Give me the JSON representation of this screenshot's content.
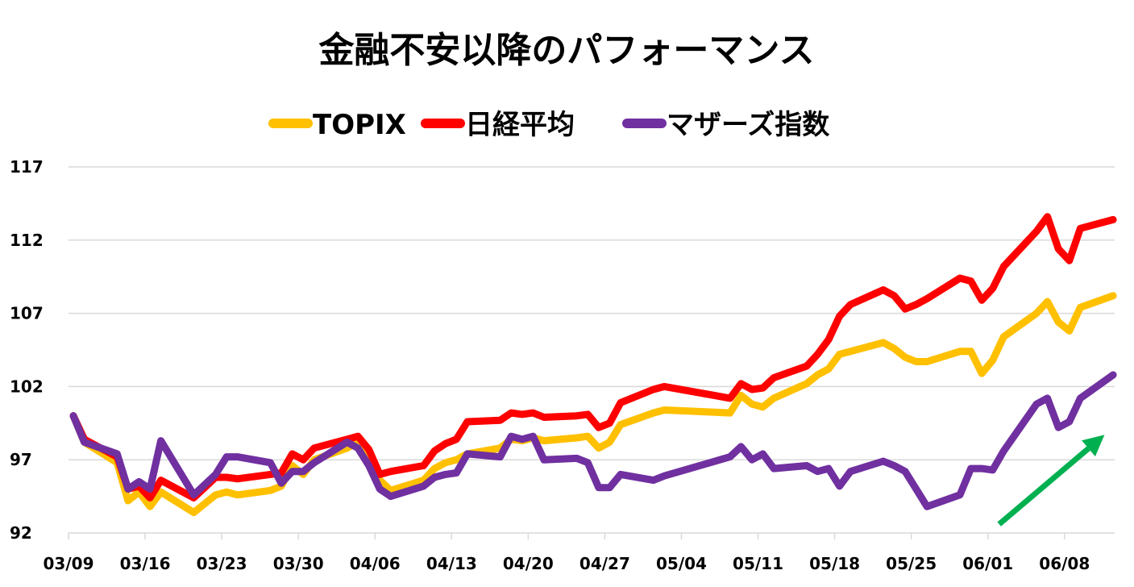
{
  "chart_data": {
    "type": "line",
    "title": "金融不安以降のパフォーマンス",
    "xlabel": "",
    "ylabel": "",
    "ylim": [
      92,
      117
    ],
    "yticks": [
      92,
      97,
      102,
      107,
      112,
      117
    ],
    "xticks": [
      "03/09",
      "03/16",
      "03/23",
      "03/30",
      "04/06",
      "04/13",
      "04/20",
      "04/27",
      "05/04",
      "05/11",
      "05/18",
      "05/25",
      "06/01",
      "06/08"
    ],
    "grid": true,
    "legend_position": "top",
    "x": [
      "03/09",
      "03/10",
      "03/13",
      "03/14",
      "03/15",
      "03/16",
      "03/17",
      "03/20",
      "03/22",
      "03/23",
      "03/24",
      "03/27",
      "03/28",
      "03/29",
      "03/30",
      "03/31",
      "04/03",
      "04/04",
      "04/05",
      "04/06",
      "04/07",
      "04/10",
      "04/11",
      "04/12",
      "04/13",
      "04/14",
      "04/17",
      "04/18",
      "04/19",
      "04/20",
      "04/21",
      "04/24",
      "04/25",
      "04/26",
      "04/27",
      "04/28",
      "05/01",
      "05/02",
      "05/08",
      "05/09",
      "05/10",
      "05/11",
      "05/12",
      "05/15",
      "05/16",
      "05/17",
      "05/18",
      "05/19",
      "05/22",
      "05/23",
      "05/24",
      "05/25",
      "05/26",
      "05/29",
      "05/30",
      "05/31",
      "06/01",
      "06/02",
      "06/05",
      "06/06",
      "06/07",
      "06/08",
      "06/09",
      "06/12"
    ],
    "series": [
      {
        "name": "TOPIX",
        "color": "#ffc000",
        "values": [
          100.0,
          98.2,
          96.8,
          94.2,
          94.8,
          93.8,
          94.8,
          93.4,
          94.6,
          94.8,
          94.6,
          94.9,
          95.2,
          96.6,
          96.0,
          97.0,
          97.8,
          98.2,
          97.4,
          95.6,
          94.9,
          95.6,
          96.4,
          96.8,
          97.0,
          97.4,
          97.8,
          98.4,
          98.3,
          98.5,
          98.3,
          98.5,
          98.6,
          97.8,
          98.2,
          99.4,
          100.2,
          100.4,
          100.2,
          101.4,
          100.8,
          100.6,
          101.2,
          102.2,
          102.8,
          103.2,
          104.2,
          104.4,
          105.0,
          104.6,
          104.0,
          103.7,
          103.7,
          104.4,
          104.4,
          102.9,
          103.8,
          105.4,
          107.0,
          107.8,
          106.4,
          105.8,
          107.4,
          108.2
        ]
      },
      {
        "name": "日経平均",
        "color": "#ff0000",
        "values": [
          100.0,
          98.4,
          97.2,
          95.0,
          95.2,
          94.4,
          95.6,
          94.4,
          95.8,
          95.8,
          95.7,
          96.0,
          96.1,
          97.4,
          97.0,
          97.8,
          98.4,
          98.6,
          97.7,
          96.0,
          96.2,
          96.6,
          97.6,
          98.1,
          98.4,
          99.6,
          99.7,
          100.2,
          100.1,
          100.2,
          99.9,
          100.0,
          100.1,
          99.2,
          99.5,
          100.9,
          101.8,
          102.0,
          101.2,
          102.2,
          101.8,
          101.9,
          102.6,
          103.4,
          104.2,
          105.2,
          106.8,
          107.6,
          108.6,
          108.2,
          107.3,
          107.6,
          108.0,
          109.4,
          109.2,
          107.9,
          108.7,
          110.2,
          112.6,
          113.6,
          111.4,
          110.6,
          112.8,
          113.4
        ]
      },
      {
        "name": "マザーズ指数",
        "color": "#7030a0",
        "values": [
          100.0,
          98.2,
          97.4,
          95.0,
          95.5,
          95.0,
          98.3,
          94.6,
          96.0,
          97.2,
          97.2,
          96.8,
          95.4,
          96.2,
          96.2,
          96.8,
          98.2,
          97.8,
          96.6,
          95.0,
          94.5,
          95.2,
          95.8,
          96.0,
          96.1,
          97.4,
          97.2,
          98.6,
          98.4,
          98.6,
          97.0,
          97.1,
          96.8,
          95.1,
          95.1,
          96.0,
          95.6,
          95.9,
          97.2,
          97.9,
          97.0,
          97.4,
          96.4,
          96.6,
          96.2,
          96.4,
          95.2,
          96.2,
          96.9,
          96.6,
          96.2,
          95.0,
          93.8,
          94.6,
          96.4,
          96.4,
          96.3,
          97.6,
          100.8,
          101.2,
          99.2,
          99.6,
          101.2,
          102.8
        ]
      }
    ],
    "annotations": [
      {
        "type": "arrow",
        "color": "#00b050",
        "from": [
          "06/01",
          92.6
        ],
        "to": [
          "06/09",
          98.7
        ]
      }
    ]
  }
}
